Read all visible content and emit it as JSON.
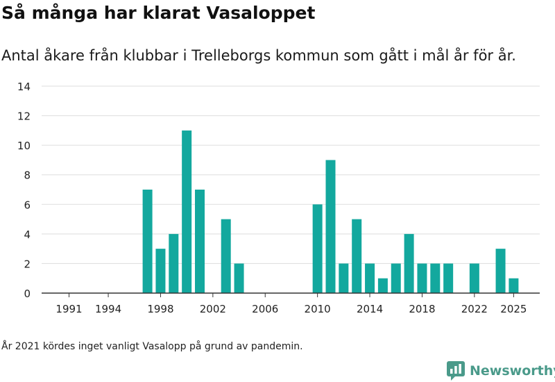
{
  "header": {
    "title": "Så många har klarat Vasaloppet",
    "subtitle": "Antal åkare från klubbar i Trelleborgs kommun som gått i mål år för år."
  },
  "footer": {
    "note": "År 2021 kördes inget vanligt Vasalopp på grund av pandemin.",
    "brand": "Newsworthy"
  },
  "colors": {
    "bar": "#13a89e",
    "grid": "#dddddd",
    "axis": "#333333",
    "brand": "#4a9a8a"
  },
  "chart_data": {
    "type": "bar",
    "title": "Så många har klarat Vasaloppet",
    "subtitle": "Antal åkare från klubbar i Trelleborgs kommun som gått i mål år för år.",
    "x": [
      1990,
      1991,
      1992,
      1993,
      1994,
      1995,
      1996,
      1997,
      1998,
      1999,
      2000,
      2001,
      2002,
      2003,
      2004,
      2005,
      2006,
      2007,
      2008,
      2009,
      2010,
      2011,
      2012,
      2013,
      2014,
      2015,
      2016,
      2017,
      2018,
      2019,
      2020,
      2021,
      2022,
      2023,
      2024,
      2025
    ],
    "values": [
      0,
      0,
      0,
      0,
      0,
      0,
      0,
      7,
      3,
      4,
      11,
      7,
      0,
      5,
      2,
      0,
      0,
      0,
      0,
      0,
      6,
      9,
      2,
      5,
      2,
      1,
      2,
      4,
      2,
      2,
      2,
      0,
      2,
      0,
      3,
      1
    ],
    "xticks": [
      1991,
      1994,
      1998,
      2002,
      2006,
      2010,
      2014,
      2018,
      2022,
      2025
    ],
    "yticks": [
      0,
      2,
      4,
      6,
      8,
      10,
      12,
      14
    ],
    "ylim": [
      0,
      14
    ],
    "grid": true,
    "legend": "none"
  }
}
